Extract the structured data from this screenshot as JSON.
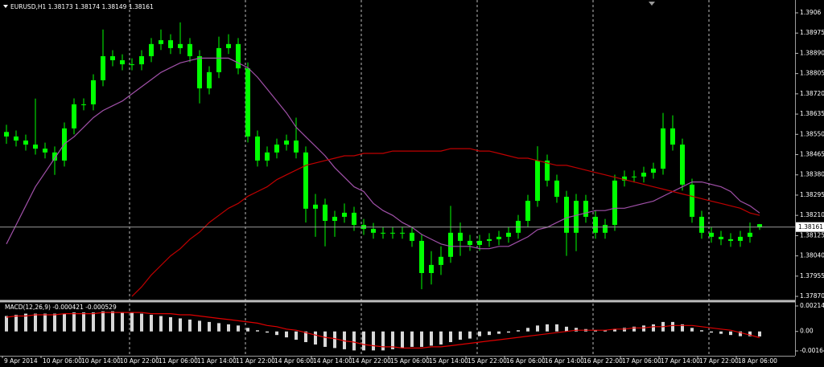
{
  "chart_data": {
    "type": "candlestick",
    "title": "EURUSD,H1  1.38173 1.38174 1.38149 1.38161",
    "categories": [
      "9 Apr 2014",
      null,
      null,
      null,
      "10 Apr 06:00",
      null,
      null,
      null,
      "10 Apr 14:00",
      null,
      null,
      null,
      "10 Apr 22:00",
      null,
      null,
      null,
      "11 Apr 06:00",
      null,
      null,
      null,
      "11 Apr 14:00",
      null,
      null,
      null,
      "11 Apr 22:00",
      null,
      null,
      null,
      "14 Apr 06:00",
      null,
      null,
      null,
      "14 Apr 14:00",
      null,
      null,
      null,
      "14 Apr 22:00",
      null,
      null,
      null,
      "15 Apr 06:00",
      null,
      null,
      null,
      "15 Apr 14:00",
      null,
      null,
      null,
      "15 Apr 22:00",
      null,
      null,
      null,
      "16 Apr 06:00",
      null,
      null,
      null,
      "16 Apr 14:00",
      null,
      null,
      null,
      "16 Apr 22:00",
      null,
      null,
      null,
      "17 Apr 06:00",
      null,
      null,
      null,
      "17 Apr 14:00",
      null,
      null,
      null,
      "17 Apr 22:00",
      null,
      null,
      null,
      "18 Apr 06:00",
      null,
      null
    ],
    "open": [
      1.3856,
      1.38541,
      1.38524,
      1.38507,
      1.3849,
      1.38474,
      1.3844,
      1.38575,
      1.38676,
      1.38676,
      1.38777,
      1.38878,
      1.38861,
      1.38844,
      1.38844,
      1.38878,
      1.38929,
      1.38945,
      1.38912,
      1.38929,
      1.38878,
      1.38743,
      1.38811,
      1.38912,
      1.38929,
      1.38827,
      1.38541,
      1.3844,
      1.38474,
      1.38507,
      1.38524,
      1.38474,
      1.38238,
      1.38255,
      1.38187,
      1.38204,
      1.38221,
      1.3817,
      1.38153,
      1.38137,
      1.38137,
      1.38137,
      1.38137,
      1.38103,
      1.37968,
      1.38002,
      1.38036,
      1.38137,
      1.38103,
      1.38086,
      1.38103,
      1.3811,
      1.3812,
      1.38137,
      1.38187,
      1.38271,
      1.3844,
      1.38356,
      1.38288,
      1.38137,
      1.38271,
      1.38204,
      1.38137,
      1.3817,
      1.38356,
      1.38373,
      1.38373,
      1.38389,
      1.38406,
      1.38575,
      1.38507,
      1.38339,
      1.38204,
      1.38137,
      1.3812,
      1.3811,
      1.38103,
      1.3812,
      1.38173
    ],
    "high": [
      1.3859,
      1.38566,
      1.38549,
      1.387,
      1.38515,
      1.38499,
      1.386,
      1.38701,
      1.38701,
      1.38802,
      1.3899,
      1.38903,
      1.38886,
      1.38869,
      1.38903,
      1.38954,
      1.3899,
      1.3897,
      1.3902,
      1.38954,
      1.38903,
      1.38836,
      1.3896,
      1.3897,
      1.38954,
      1.38852,
      1.38566,
      1.38499,
      1.38532,
      1.38549,
      1.3862,
      1.38499,
      1.383,
      1.3828,
      1.38229,
      1.3826,
      1.38246,
      1.38195,
      1.38178,
      1.38162,
      1.38162,
      1.38162,
      1.38162,
      1.38128,
      1.3806,
      1.3808,
      1.3825,
      1.3818,
      1.38128,
      1.38128,
      1.38135,
      1.38145,
      1.38162,
      1.38212,
      1.38296,
      1.385,
      1.38465,
      1.38381,
      1.38313,
      1.383,
      1.38296,
      1.38229,
      1.38195,
      1.38381,
      1.38398,
      1.38398,
      1.38414,
      1.38431,
      1.3864,
      1.3863,
      1.38532,
      1.38364,
      1.38229,
      1.38162,
      1.38145,
      1.38135,
      1.38145,
      1.3818,
      1.38174
    ],
    "low": [
      1.3851,
      1.38499,
      1.38482,
      1.38465,
      1.38449,
      1.3838,
      1.38415,
      1.3855,
      1.38651,
      1.38651,
      1.38752,
      1.38836,
      1.38819,
      1.38819,
      1.38819,
      1.38853,
      1.38904,
      1.38887,
      1.38887,
      1.38853,
      1.3868,
      1.38718,
      1.38786,
      1.38887,
      1.38802,
      1.38516,
      1.38415,
      1.38415,
      1.38449,
      1.38482,
      1.38449,
      1.3818,
      1.3812,
      1.3808,
      1.3812,
      1.38179,
      1.38145,
      1.38128,
      1.38112,
      1.38112,
      1.38112,
      1.38112,
      1.38078,
      1.379,
      1.3792,
      1.3796,
      1.38011,
      1.3804,
      1.38061,
      1.38061,
      1.38078,
      1.38085,
      1.38095,
      1.38112,
      1.38162,
      1.38246,
      1.38331,
      1.38263,
      1.3804,
      1.3806,
      1.38179,
      1.38112,
      1.38112,
      1.38145,
      1.38331,
      1.38348,
      1.38348,
      1.38364,
      1.38381,
      1.38482,
      1.38314,
      1.38179,
      1.38112,
      1.38095,
      1.38085,
      1.38078,
      1.38078,
      1.38095,
      1.38149
    ],
    "close": [
      1.38541,
      1.38524,
      1.38507,
      1.3849,
      1.38474,
      1.3844,
      1.38575,
      1.38676,
      1.38676,
      1.38777,
      1.38878,
      1.38861,
      1.38844,
      1.38844,
      1.38878,
      1.38929,
      1.38945,
      1.38912,
      1.38929,
      1.38878,
      1.38743,
      1.38811,
      1.38912,
      1.38929,
      1.38827,
      1.38541,
      1.3844,
      1.38474,
      1.38507,
      1.38524,
      1.38474,
      1.38238,
      1.38255,
      1.38187,
      1.38204,
      1.38221,
      1.3817,
      1.38153,
      1.38137,
      1.38137,
      1.38137,
      1.38137,
      1.38103,
      1.37968,
      1.38002,
      1.38036,
      1.38137,
      1.38103,
      1.38086,
      1.38103,
      1.3811,
      1.3812,
      1.38137,
      1.38187,
      1.38271,
      1.3844,
      1.38356,
      1.38288,
      1.38137,
      1.38271,
      1.38204,
      1.38137,
      1.3817,
      1.38356,
      1.38373,
      1.38373,
      1.38389,
      1.38406,
      1.38575,
      1.38507,
      1.38339,
      1.38204,
      1.38137,
      1.3812,
      1.3811,
      1.38103,
      1.3812,
      1.38137,
      1.38161
    ],
    "color": "#00ff00",
    "series": [
      {
        "color": "#a050a8",
        "values": [
          1.3809,
          1.3817,
          1.3825,
          1.3833,
          1.3839,
          1.3845,
          1.3851,
          1.3854,
          1.3858,
          1.3862,
          1.3865,
          1.3867,
          1.3869,
          1.3872,
          1.3875,
          1.3878,
          1.3881,
          1.3883,
          1.3885,
          1.3886,
          1.3887,
          1.3887,
          1.3887,
          1.3887,
          1.3885,
          1.3883,
          1.3879,
          1.3874,
          1.3869,
          1.3864,
          1.3858,
          1.3854,
          1.385,
          1.3846,
          1.3841,
          1.3837,
          1.3833,
          1.3831,
          1.3826,
          1.3823,
          1.3821,
          1.3818,
          1.3816,
          1.3813,
          1.3811,
          1.3809,
          1.3808,
          1.3808,
          1.3808,
          1.3807,
          1.3807,
          1.3808,
          1.3808,
          1.381,
          1.3812,
          1.3815,
          1.3816,
          1.3818,
          1.382,
          1.3821,
          1.3822,
          1.3823,
          1.3823,
          1.3824,
          1.3824,
          1.3825,
          1.3826,
          1.3827,
          1.3829,
          1.3831,
          1.3833,
          1.3835,
          1.3835,
          1.3834,
          1.3833,
          1.3831,
          1.3827,
          1.3825,
          1.3822
        ]
      },
      {
        "color": "#c00000",
        "values": [
          null,
          null,
          null,
          null,
          null,
          null,
          null,
          null,
          null,
          null,
          null,
          null,
          null,
          1.3787,
          1.3791,
          1.3796,
          1.38,
          1.3804,
          1.3807,
          1.3811,
          1.3814,
          1.3818,
          1.3821,
          1.3824,
          1.3826,
          1.3829,
          1.3831,
          1.3833,
          1.3836,
          1.3838,
          1.384,
          1.3842,
          1.3843,
          1.3844,
          1.3845,
          1.3846,
          1.3846,
          1.3847,
          1.3847,
          1.3847,
          1.3848,
          1.3848,
          1.3848,
          1.3848,
          1.3848,
          1.3848,
          1.3849,
          1.3849,
          1.3849,
          1.3848,
          1.3848,
          1.3847,
          1.3846,
          1.3845,
          1.3845,
          1.3844,
          1.3843,
          1.3842,
          1.3842,
          1.3841,
          1.384,
          1.3839,
          1.3838,
          1.3837,
          1.3836,
          1.3835,
          1.3834,
          1.3833,
          1.3832,
          1.3831,
          1.383,
          1.3829,
          1.3828,
          1.3827,
          1.3826,
          1.3825,
          1.3824,
          1.3822,
          1.3821
        ]
      }
    ],
    "ylim": [
      1.3785,
      1.39097
    ],
    "yticks": [
      1.3906,
      1.38975,
      {
        "value": 1.3889,
        "label": "1.38890"
      },
      1.38805,
      {
        "value": 1.3872,
        "label": "1.38720"
      },
      1.38635,
      {
        "value": 1.3855,
        "label": "1.38550"
      },
      1.38465,
      {
        "value": 1.3838,
        "label": "1.38380"
      },
      1.38295,
      {
        "value": 1.3821,
        "label": "1.38210"
      },
      1.38125,
      {
        "value": 1.3804,
        "label": "1.38040"
      },
      1.37955,
      {
        "value": 1.3787,
        "label": "1.37870"
      }
    ],
    "grid": true,
    "indicator": {
      "type": "macd",
      "title": "MACD(12,26,9) -0.000421 -0.000529",
      "histogram": {
        "color": "#d8d8d8",
        "values": [
          0.0013,
          0.0014,
          0.0015,
          0.0015,
          0.0015,
          0.0015,
          0.0015,
          0.0016,
          0.0016,
          0.0016,
          0.0017,
          0.0017,
          0.0016,
          0.0016,
          0.0015,
          0.0014,
          0.0013,
          0.0012,
          0.0011,
          0.001,
          0.0009,
          0.0008,
          0.0007,
          0.0006,
          0.0005,
          0.0003,
          0.0001,
          -0.0001,
          -0.0003,
          -0.0005,
          -0.0007,
          -0.0009,
          -0.0011,
          -0.0013,
          -0.0014,
          -0.0015,
          -0.0016,
          -0.0016,
          -0.0016,
          -0.0016,
          -0.0015,
          -0.0014,
          -0.0013,
          -0.0013,
          -0.0012,
          -0.0011,
          -0.0009,
          -0.0007,
          -0.0006,
          -0.0004,
          -0.0003,
          -0.0002,
          -0.0001,
          0.0001,
          0.0003,
          0.0005,
          0.0006,
          0.0006,
          0.0004,
          0.0003,
          0.0002,
          0.0001,
          0.0001,
          0.0002,
          0.0003,
          0.0004,
          0.0005,
          0.0006,
          0.0008,
          0.0008,
          0.0006,
          0.0003,
          0.0001,
          -0.0001,
          -0.0002,
          -0.0003,
          -0.0004,
          -0.0004,
          -0.000421
        ]
      },
      "signal": {
        "color": "#e00000",
        "values": [
          0.0012,
          0.0013,
          0.0013,
          0.0014,
          0.0014,
          0.0014,
          0.0015,
          0.0015,
          0.0015,
          0.0015,
          0.0016,
          0.0016,
          0.0016,
          0.0016,
          0.0016,
          0.0015,
          0.0015,
          0.0015,
          0.0014,
          0.0014,
          0.0013,
          0.0012,
          0.0011,
          0.001,
          0.0009,
          0.0008,
          0.0007,
          0.0005,
          0.0004,
          0.0002,
          0.0001,
          -0.0001,
          -0.0003,
          -0.0005,
          -0.0006,
          -0.0008,
          -0.0009,
          -0.0011,
          -0.0012,
          -0.0013,
          -0.0013,
          -0.0014,
          -0.0014,
          -0.0014,
          -0.0013,
          -0.0013,
          -0.0012,
          -0.0011,
          -0.001,
          -0.0009,
          -0.0008,
          -0.0007,
          -0.0006,
          -0.0005,
          -0.0004,
          -0.0003,
          -0.0002,
          -0.0001,
          0,
          0.0001,
          0.0001,
          0.0001,
          0.0001,
          0.0002,
          0.0002,
          0.0003,
          0.0003,
          0.0004,
          0.0004,
          0.0005,
          0.0005,
          0.0005,
          0.0004,
          0.0003,
          0.0002,
          0.0001,
          -0.0001,
          -0.0003,
          -0.000529
        ]
      },
      "ylim": [
        -0.001643,
        0.002147
      ],
      "yticks": [
        0.002147,
        {
          "value": 0,
          "label": "0.00"
        },
        -0.001643
      ]
    }
  }
}
